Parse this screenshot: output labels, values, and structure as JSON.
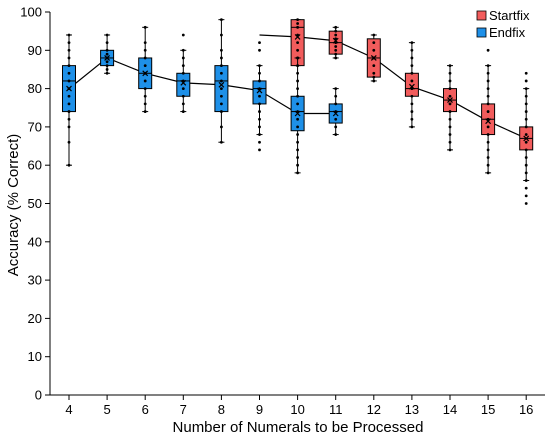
{
  "chart_data": {
    "type": "boxplot",
    "xlabel": "Number of Numerals to be Processed",
    "ylabel": "Accuracy (% Correct)",
    "ylim": [
      0,
      100
    ],
    "yticks": [
      0,
      10,
      20,
      30,
      40,
      50,
      60,
      70,
      80,
      90,
      100
    ],
    "categories": [
      "4",
      "5",
      "6",
      "7",
      "8",
      "9",
      "10",
      "11",
      "12",
      "13",
      "14",
      "15",
      "16"
    ],
    "grid": false,
    "legend_position": "top-right",
    "series": [
      {
        "name": "Startfix",
        "color": "#f25c5c",
        "boxes": [
          {
            "x": 10,
            "whisker_low": 86,
            "q1": 86,
            "median": 96,
            "q3": 98,
            "whisker_high": 98,
            "mean": 93.5,
            "points": [
              86,
              88,
              90,
              92,
              94,
              96,
              97,
              98
            ]
          },
          {
            "x": 11,
            "whisker_low": 88,
            "q1": 89,
            "median": 92,
            "q3": 95,
            "whisker_high": 96,
            "mean": 92.5,
            "points": [
              88,
              89,
              90,
              91,
              92,
              93,
              94,
              95,
              96
            ]
          },
          {
            "x": 12,
            "whisker_low": 82,
            "q1": 83,
            "median": 88,
            "q3": 93,
            "whisker_high": 94,
            "mean": 88,
            "points": [
              82,
              83,
              84,
              86,
              88,
              90,
              92,
              94
            ]
          },
          {
            "x": 13,
            "whisker_low": 70,
            "q1": 78,
            "median": 80,
            "q3": 84,
            "whisker_high": 92,
            "mean": 80.5,
            "points": [
              70,
              72,
              74,
              76,
              78,
              80,
              82,
              84,
              86,
              88,
              90,
              92
            ]
          },
          {
            "x": 14,
            "whisker_low": 64,
            "q1": 74,
            "median": 77,
            "q3": 80,
            "whisker_high": 86,
            "mean": 77,
            "points": [
              64,
              66,
              68,
              70,
              72,
              74,
              76,
              78,
              80,
              82,
              84,
              86
            ]
          },
          {
            "x": 15,
            "whisker_low": 58,
            "q1": 68,
            "median": 72,
            "q3": 76,
            "whisker_high": 86,
            "mean": 71.5,
            "points": [
              58,
              60,
              62,
              64,
              66,
              68,
              70,
              72,
              74,
              76,
              78,
              80,
              82,
              84,
              86,
              90
            ]
          },
          {
            "x": 16,
            "whisker_low": 56,
            "q1": 64,
            "median": 67,
            "q3": 70,
            "whisker_high": 80,
            "mean": 67,
            "points": [
              50,
              52,
              54,
              56,
              58,
              60,
              62,
              64,
              66,
              68,
              70,
              72,
              74,
              76,
              78,
              80,
              82,
              84
            ]
          }
        ],
        "mean_line": [
          [
            9,
            94
          ],
          [
            10,
            93.5
          ],
          [
            11,
            92.5
          ],
          [
            12,
            88
          ],
          [
            13,
            80.5
          ],
          [
            14,
            77
          ],
          [
            15,
            71.5
          ],
          [
            16,
            67
          ]
        ]
      },
      {
        "name": "Endfix",
        "color": "#1e90e8",
        "boxes": [
          {
            "x": 4,
            "whisker_low": 60,
            "q1": 74,
            "median": 82,
            "q3": 86,
            "whisker_high": 94,
            "mean": 80,
            "points": [
              60,
              66,
              70,
              72,
              74,
              76,
              78,
              80,
              82,
              84,
              86,
              88,
              90,
              92,
              94
            ]
          },
          {
            "x": 5,
            "whisker_low": 84,
            "q1": 86,
            "median": 88,
            "q3": 90,
            "whisker_high": 94,
            "mean": 88,
            "points": [
              84,
              85,
              86,
              87,
              88,
              89,
              90,
              92,
              94
            ]
          },
          {
            "x": 6,
            "whisker_low": 74,
            "q1": 80,
            "median": 84,
            "q3": 88,
            "whisker_high": 96,
            "mean": 84,
            "points": [
              74,
              76,
              78,
              80,
              82,
              84,
              86,
              88,
              90,
              92,
              96
            ]
          },
          {
            "x": 7,
            "whisker_low": 74,
            "q1": 78,
            "median": 82,
            "q3": 84,
            "whisker_high": 90,
            "mean": 81.5,
            "points": [
              74,
              76,
              78,
              80,
              82,
              84,
              86,
              88,
              90,
              94
            ]
          },
          {
            "x": 8,
            "whisker_low": 66,
            "q1": 74,
            "median": 82,
            "q3": 86,
            "whisker_high": 98,
            "mean": 81,
            "points": [
              66,
              70,
              74,
              76,
              78,
              80,
              82,
              84,
              86,
              88,
              90,
              94,
              98
            ]
          },
          {
            "x": 9,
            "whisker_low": 68,
            "q1": 76,
            "median": 80,
            "q3": 82,
            "whisker_high": 86,
            "mean": 79.5,
            "points": [
              64,
              66,
              68,
              70,
              72,
              74,
              76,
              78,
              80,
              82,
              84,
              86,
              90,
              92
            ]
          },
          {
            "x": 10,
            "whisker_low": 58,
            "q1": 69,
            "median": 74,
            "q3": 78,
            "whisker_high": 88,
            "mean": 73.5,
            "points": [
              58,
              60,
              62,
              64,
              66,
              68,
              70,
              72,
              74,
              76,
              78,
              80,
              82,
              84,
              86,
              88
            ]
          },
          {
            "x": 11,
            "whisker_low": 68,
            "q1": 71,
            "median": 74,
            "q3": 76,
            "whisker_high": 80,
            "mean": 73.5,
            "points": [
              68,
              70,
              72,
              74,
              76,
              78,
              80
            ]
          }
        ],
        "mean_line": [
          [
            4,
            80
          ],
          [
            5,
            88
          ],
          [
            6,
            84
          ],
          [
            7,
            81.5
          ],
          [
            8,
            81
          ],
          [
            9,
            79.5
          ],
          [
            10,
            73.5
          ],
          [
            11,
            73.5
          ]
        ]
      }
    ]
  }
}
